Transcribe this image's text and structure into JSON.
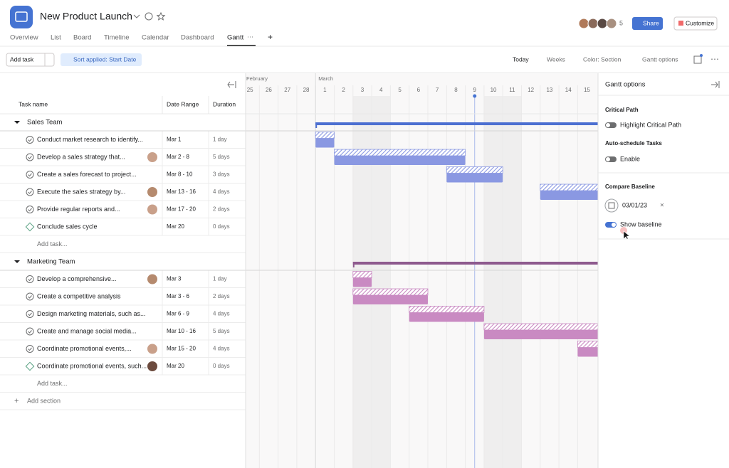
{
  "header": {
    "title": "New Product Launch",
    "member_count": "5",
    "share": "Share",
    "customize": "Customize"
  },
  "tabs": [
    "Overview",
    "List",
    "Board",
    "Timeline",
    "Calendar",
    "Dashboard",
    "Gantt"
  ],
  "toolbar": {
    "add_task": "Add task",
    "sort": "Sort applied: Start Date",
    "today": "Today",
    "zoom": "Weeks",
    "color": "Color: Section",
    "gantt_options": "Gantt options"
  },
  "columns": [
    "Task name",
    "Date Range",
    "Duration"
  ],
  "sections": [
    {
      "name": "Sales Team",
      "color": "#4c6fd1",
      "bar_color": "#8a98e2",
      "add_task": "Add task...",
      "tasks": [
        {
          "name": "Conduct market research to identify...",
          "dates": "Mar 1",
          "duration": "1 day"
        },
        {
          "name": "Develop a sales strategy that...",
          "dates": "Mar 2 - 8",
          "duration": "5 days"
        },
        {
          "name": "Create a sales forecast to project...",
          "dates": "Mar 8 - 10",
          "duration": "3 days"
        },
        {
          "name": "Execute the sales strategy by...",
          "dates": "Mar 13 - 16",
          "duration": "4 days"
        },
        {
          "name": "Provide regular reports and...",
          "dates": "Mar 17 - 20",
          "duration": "2 days"
        },
        {
          "name": "Conclude sales cycle",
          "dates": "Mar 20",
          "duration": "0 days",
          "milestone": true
        }
      ]
    },
    {
      "name": "Marketing Team",
      "color": "#8e5a8e",
      "bar_color": "#c98ac2",
      "add_task": "Add task...",
      "tasks": [
        {
          "name": "Develop a comprehensive...",
          "dates": "Mar 3",
          "duration": "1 day"
        },
        {
          "name": "Create a competitive analysis",
          "dates": "Mar 3 - 6",
          "duration": "2 days"
        },
        {
          "name": "Design marketing materials, such as...",
          "dates": "Mar 6 - 9",
          "duration": "4 days"
        },
        {
          "name": "Create and manage social media...",
          "dates": "Mar 10 - 16",
          "duration": "5 days"
        },
        {
          "name": "Coordinate promotional events,...",
          "dates": "Mar 15 - 20",
          "duration": "4 days"
        },
        {
          "name": "Coordinate promotional events, such...",
          "dates": "Mar 20",
          "duration": "0 days",
          "milestone": true
        }
      ]
    }
  ],
  "add_section": "Add section",
  "timeline": {
    "months": [
      "February",
      "March"
    ],
    "days": [
      "25",
      "26",
      "27",
      "28",
      "1",
      "2",
      "3",
      "4",
      "5",
      "6",
      "7",
      "8",
      "9",
      "10",
      "11",
      "12",
      "13",
      "14",
      "15"
    ]
  },
  "panel": {
    "title": "Gantt options",
    "critical_path": "Critical Path",
    "highlight": "Highlight Critical Path",
    "auto_schedule": "Auto-schedule Tasks",
    "enable": "Enable",
    "compare_baseline": "Compare Baseline",
    "baseline_date": "03/01/23",
    "show_baseline": "Show baseline"
  }
}
